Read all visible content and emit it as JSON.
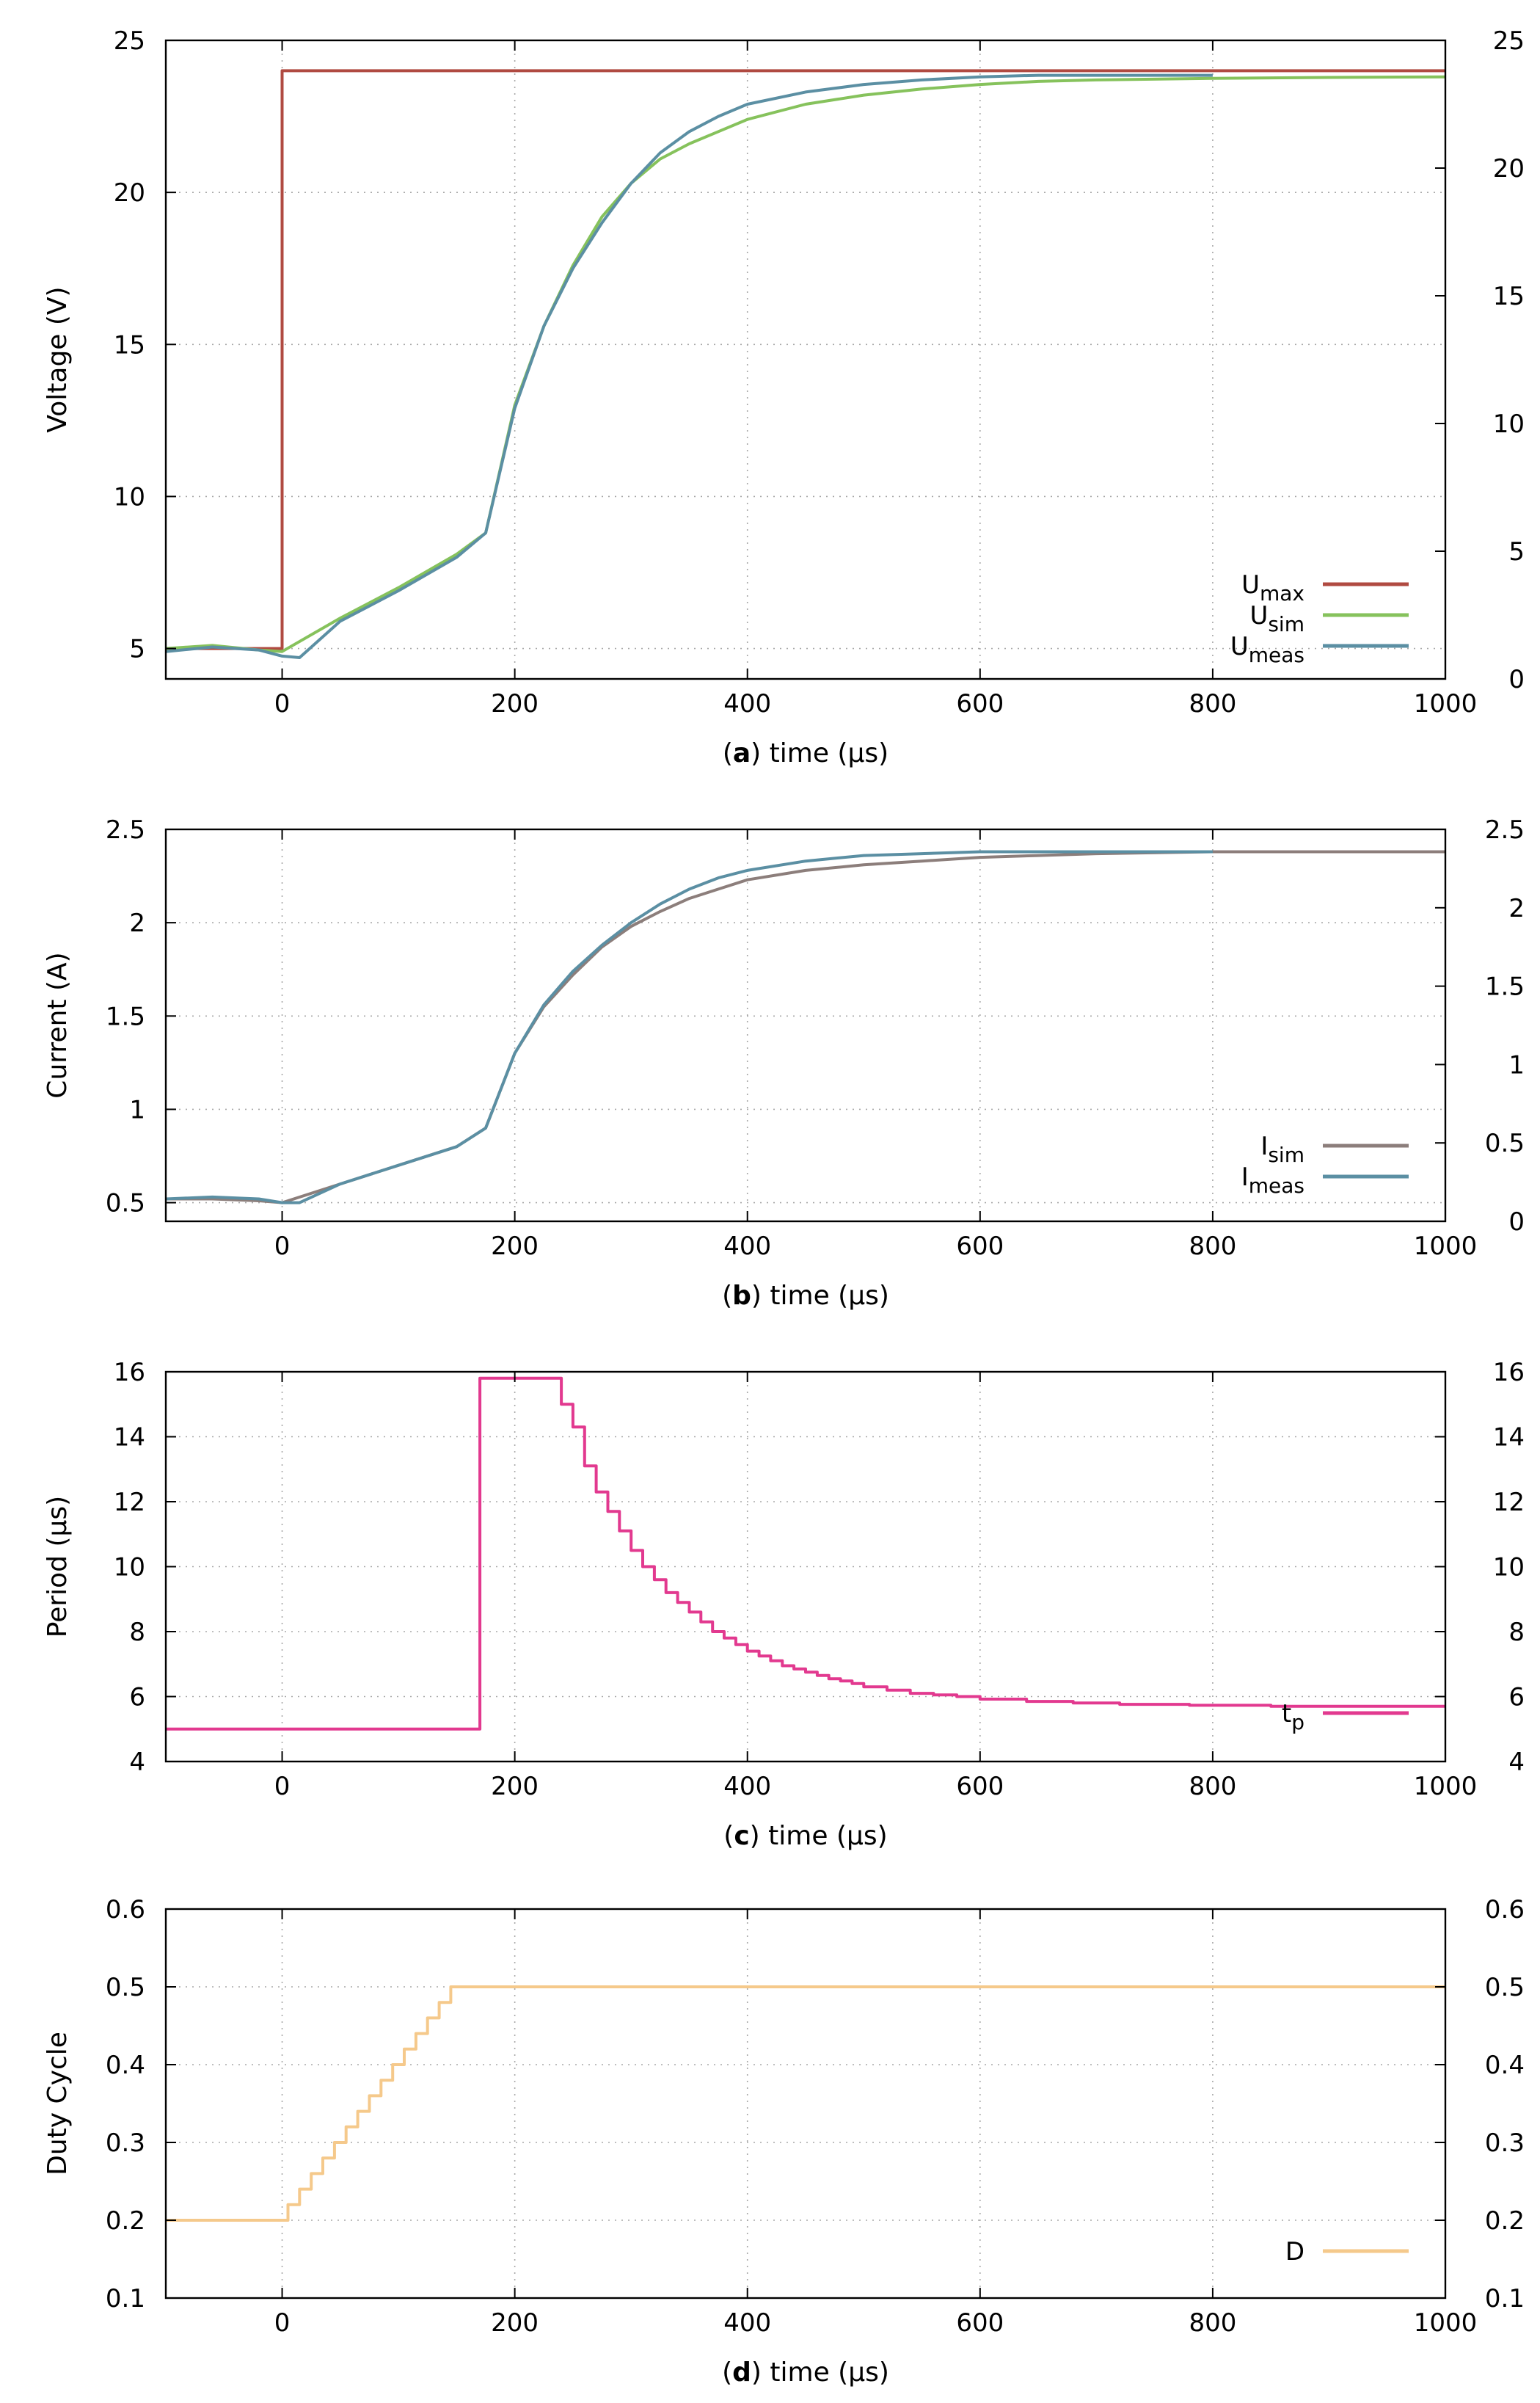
{
  "chart_data": [
    {
      "id": "a",
      "type": "line",
      "panel_tag": "a",
      "xlabel": "time (µs)",
      "ylabel": "Voltage (V)",
      "xlim": [
        -100,
        1000
      ],
      "ylim": [
        4,
        25
      ],
      "y2lim": [
        0,
        25
      ],
      "xticks": [
        0,
        200,
        400,
        600,
        800,
        1000
      ],
      "yticks": [
        5,
        10,
        15,
        20,
        25
      ],
      "y2ticks": [
        0,
        5,
        10,
        15,
        20,
        25
      ],
      "grid": true,
      "legend_position": "bottom-right",
      "series": [
        {
          "name": "U",
          "sub": "max",
          "color": "#b04a41",
          "step": true,
          "x": [
            -100,
            0,
            0,
            1000
          ],
          "y": [
            5,
            5,
            24,
            24
          ]
        },
        {
          "name": "U",
          "sub": "sim",
          "color": "#86c25c",
          "x": [
            -100,
            -60,
            -20,
            0,
            50,
            100,
            150,
            175,
            200,
            225,
            250,
            275,
            300,
            325,
            350,
            375,
            400,
            450,
            500,
            550,
            600,
            650,
            700,
            800,
            900,
            1000
          ],
          "y": [
            5.0,
            5.1,
            4.95,
            4.9,
            6.0,
            7.0,
            8.1,
            8.8,
            13.0,
            15.6,
            17.6,
            19.2,
            20.3,
            21.1,
            21.6,
            22.0,
            22.4,
            22.9,
            23.2,
            23.4,
            23.55,
            23.65,
            23.7,
            23.75,
            23.78,
            23.8
          ]
        },
        {
          "name": "U",
          "sub": "meas",
          "color": "#5b8fa3",
          "x": [
            -100,
            -60,
            -20,
            0,
            15,
            50,
            100,
            150,
            175,
            200,
            225,
            250,
            275,
            300,
            325,
            350,
            375,
            400,
            450,
            500,
            550,
            600,
            650,
            700,
            750,
            800
          ],
          "y": [
            4.9,
            5.05,
            4.95,
            4.75,
            4.7,
            5.9,
            6.9,
            8.0,
            8.8,
            12.9,
            15.6,
            17.5,
            19.0,
            20.3,
            21.3,
            22.0,
            22.5,
            22.9,
            23.3,
            23.55,
            23.7,
            23.8,
            23.85,
            23.85,
            23.85,
            23.85
          ]
        }
      ]
    },
    {
      "id": "b",
      "type": "line",
      "panel_tag": "b",
      "xlabel": "time (µs)",
      "ylabel": "Current (A)",
      "xlim": [
        -100,
        1000
      ],
      "ylim": [
        0.4,
        2.5
      ],
      "y2lim": [
        0,
        2.5
      ],
      "xticks": [
        0,
        200,
        400,
        600,
        800,
        1000
      ],
      "yticks": [
        0.5,
        1,
        1.5,
        2,
        2.5
      ],
      "y2ticks": [
        0,
        0.5,
        1,
        1.5,
        2,
        2.5
      ],
      "grid": true,
      "legend_position": "bottom-right",
      "series": [
        {
          "name": "I",
          "sub": "sim",
          "color": "#8c7e7b",
          "x": [
            -100,
            -60,
            -20,
            0,
            50,
            100,
            150,
            175,
            200,
            225,
            250,
            275,
            300,
            325,
            350,
            375,
            400,
            450,
            500,
            550,
            600,
            650,
            700,
            800,
            900,
            1000
          ],
          "y": [
            0.52,
            0.52,
            0.51,
            0.5,
            0.6,
            0.7,
            0.8,
            0.9,
            1.3,
            1.55,
            1.72,
            1.87,
            1.98,
            2.06,
            2.13,
            2.18,
            2.23,
            2.28,
            2.31,
            2.33,
            2.35,
            2.36,
            2.37,
            2.38,
            2.38,
            2.38
          ]
        },
        {
          "name": "I",
          "sub": "meas",
          "color": "#5b8fa3",
          "x": [
            -100,
            -60,
            -20,
            0,
            15,
            50,
            100,
            150,
            175,
            200,
            225,
            250,
            275,
            300,
            325,
            350,
            375,
            400,
            450,
            500,
            550,
            600,
            650,
            700,
            750,
            800
          ],
          "y": [
            0.52,
            0.53,
            0.52,
            0.5,
            0.5,
            0.6,
            0.7,
            0.8,
            0.9,
            1.3,
            1.56,
            1.74,
            1.88,
            2.0,
            2.1,
            2.18,
            2.24,
            2.28,
            2.33,
            2.36,
            2.37,
            2.38,
            2.38,
            2.38,
            2.38,
            2.38
          ]
        }
      ]
    },
    {
      "id": "c",
      "type": "line",
      "panel_tag": "c",
      "xlabel": "time (µs)",
      "ylabel": "Period (µs)",
      "xlim": [
        -100,
        1000
      ],
      "ylim": [
        4,
        16
      ],
      "y2lim": [
        4,
        16
      ],
      "xticks": [
        0,
        200,
        400,
        600,
        800,
        1000
      ],
      "yticks": [
        4,
        6,
        8,
        10,
        12,
        14,
        16
      ],
      "y2ticks": [
        4,
        6,
        8,
        10,
        12,
        14,
        16
      ],
      "grid": true,
      "legend_position": "bottom-right",
      "series": [
        {
          "name": "t",
          "sub": "p",
          "color": "#e2398f",
          "step": true,
          "x": [
            -100,
            170,
            170,
            240,
            240,
            250,
            250,
            260,
            260,
            270,
            270,
            280,
            280,
            290,
            290,
            300,
            300,
            310,
            310,
            320,
            320,
            330,
            330,
            340,
            340,
            350,
            350,
            360,
            360,
            370,
            370,
            380,
            380,
            390,
            390,
            400,
            400,
            410,
            410,
            420,
            420,
            430,
            430,
            440,
            440,
            450,
            450,
            460,
            460,
            470,
            470,
            480,
            480,
            490,
            490,
            500,
            500,
            520,
            520,
            540,
            540,
            560,
            560,
            580,
            580,
            600,
            600,
            640,
            640,
            680,
            680,
            720,
            720,
            780,
            780,
            850,
            850,
            1000
          ],
          "y": [
            5.0,
            5.0,
            15.8,
            15.8,
            15.0,
            15.0,
            14.3,
            14.3,
            13.1,
            13.1,
            12.3,
            12.3,
            11.7,
            11.7,
            11.1,
            11.1,
            10.5,
            10.5,
            10.0,
            10.0,
            9.6,
            9.6,
            9.2,
            9.2,
            8.9,
            8.9,
            8.6,
            8.6,
            8.3,
            8.3,
            8.0,
            8.0,
            7.8,
            7.8,
            7.6,
            7.6,
            7.4,
            7.4,
            7.25,
            7.25,
            7.1,
            7.1,
            6.95,
            6.95,
            6.85,
            6.85,
            6.75,
            6.75,
            6.65,
            6.65,
            6.55,
            6.55,
            6.48,
            6.48,
            6.4,
            6.4,
            6.3,
            6.3,
            6.2,
            6.2,
            6.1,
            6.1,
            6.05,
            6.05,
            6.0,
            6.0,
            5.92,
            5.92,
            5.85,
            5.85,
            5.8,
            5.8,
            5.76,
            5.76,
            5.73,
            5.73,
            5.7,
            5.7
          ]
        }
      ]
    },
    {
      "id": "d",
      "type": "line",
      "panel_tag": "d",
      "xlabel": "time (µs)",
      "ylabel": "Duty Cycle",
      "xlim": [
        -100,
        1000
      ],
      "ylim": [
        0.1,
        0.6
      ],
      "y2lim": [
        0.1,
        0.6
      ],
      "xticks": [
        0,
        200,
        400,
        600,
        800,
        1000
      ],
      "yticks": [
        0.1,
        0.2,
        0.3,
        0.4,
        0.5,
        0.6
      ],
      "y2ticks": [
        0.1,
        0.2,
        0.3,
        0.4,
        0.5,
        0.6
      ],
      "grid": true,
      "legend_position": "bottom-right",
      "series": [
        {
          "name": "D",
          "sub": "",
          "color": "#f5c98b",
          "step": true,
          "x": [
            -100,
            5,
            5,
            15,
            15,
            25,
            25,
            35,
            35,
            45,
            45,
            55,
            55,
            65,
            65,
            75,
            75,
            85,
            85,
            95,
            95,
            105,
            105,
            115,
            115,
            125,
            125,
            135,
            135,
            145,
            145,
            155,
            155,
            165,
            165,
            1000
          ],
          "y": [
            0.2,
            0.2,
            0.22,
            0.22,
            0.24,
            0.24,
            0.26,
            0.26,
            0.28,
            0.28,
            0.3,
            0.3,
            0.32,
            0.32,
            0.34,
            0.34,
            0.36,
            0.36,
            0.38,
            0.38,
            0.4,
            0.4,
            0.42,
            0.42,
            0.44,
            0.44,
            0.46,
            0.46,
            0.48,
            0.48,
            0.5,
            0.5,
            0.5,
            0.5,
            0.5,
            0.5
          ]
        }
      ]
    }
  ]
}
